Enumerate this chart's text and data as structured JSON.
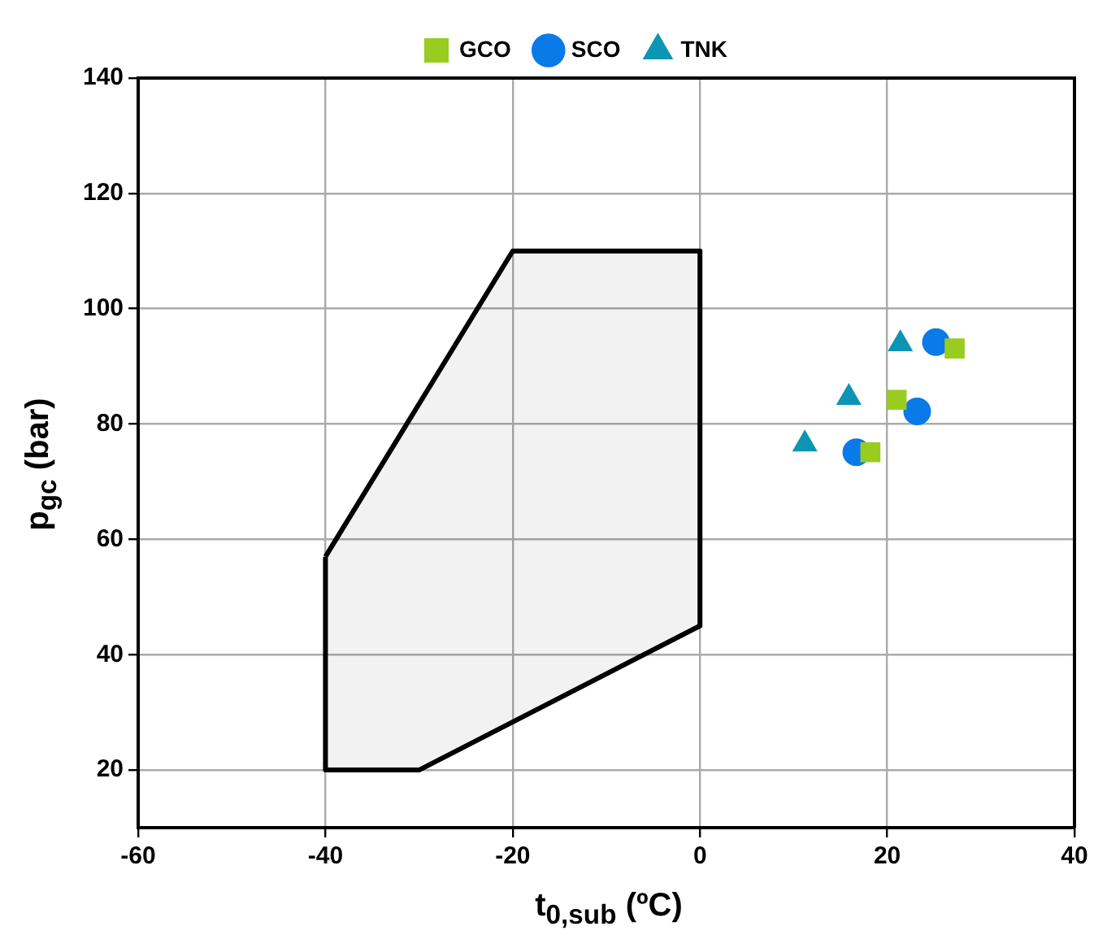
{
  "chart_data": {
    "type": "scatter",
    "xlabel": "t$_{0,sub}$ (ºC)",
    "ylabel": "p$_{gc}$ (bar)",
    "xlim": [
      -60,
      40
    ],
    "xticks": [
      -60,
      -40,
      -20,
      0,
      20,
      40
    ],
    "ylim": [
      10,
      140
    ],
    "yticks": [
      20,
      40,
      60,
      80,
      100,
      120,
      140
    ],
    "grid": true,
    "legend": "top",
    "series": [
      {
        "type": "area",
        "color": "#000000",
        "x": [
          -40,
          -20,
          0,
          0,
          -30,
          -40,
          -40
        ],
        "values": [
          57,
          110,
          110,
          45,
          20,
          20,
          57
        ],
        "marker": "none"
      },
      {
        "name": "GCO",
        "color": "#99cc1e",
        "marker": "square",
        "x": [
          18.2,
          21.0,
          27.2
        ],
        "values": [
          75.1,
          84.2,
          93.1
        ]
      },
      {
        "name": "SCO",
        "color": "#0a7ae8",
        "marker": "circle",
        "x": [
          16.7,
          23.2,
          25.2
        ],
        "values": [
          75.1,
          82.2,
          94.2
        ]
      },
      {
        "name": "TNK",
        "color": "#0e94b4",
        "marker": "triangle",
        "x": [
          11.2,
          15.9,
          21.4
        ],
        "values": [
          76.5,
          84.6,
          93.9
        ]
      }
    ]
  }
}
